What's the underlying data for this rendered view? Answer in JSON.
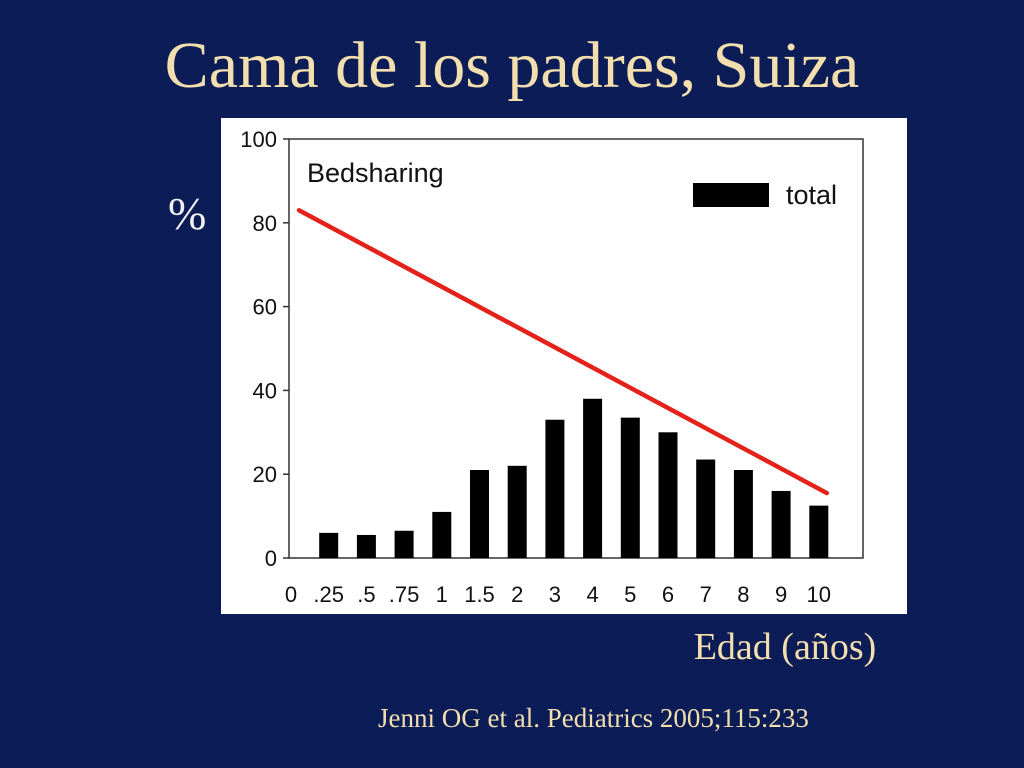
{
  "slide": {
    "title": "Cama de los padres, Suiza",
    "y_unit_label": "%",
    "x_axis_caption": "Edad (años)",
    "citation": "Jenni OG et al. Pediatrics 2005;115:233"
  },
  "chart_data": {
    "type": "bar",
    "title": "Bedsharing",
    "xlabel": "Edad (años)",
    "ylabel": "%",
    "ylim": [
      0,
      100
    ],
    "yticks": [
      0,
      20,
      40,
      60,
      80,
      100
    ],
    "x_tick_labels": [
      "0",
      ".25",
      ".5",
      ".75",
      "1",
      "1.5",
      "2",
      "3",
      "4",
      "5",
      "6",
      "7",
      "8",
      "9",
      "10"
    ],
    "categories": [
      ".25",
      ".5",
      ".75",
      "1",
      "1.5",
      "2",
      "3",
      "4",
      "5",
      "6",
      "7",
      "8",
      "9",
      "10"
    ],
    "series": [
      {
        "name": "total",
        "values": [
          6,
          5.5,
          6.5,
          11,
          21,
          22,
          33,
          38,
          33.5,
          30,
          23.5,
          21,
          16,
          12.5
        ]
      }
    ],
    "legend_position": "top-right",
    "grid": false,
    "trend_line": {
      "color": "#e3231b",
      "start": {
        "x": "0",
        "y": 83
      },
      "end": {
        "x": "10",
        "y": 15.5
      }
    },
    "bar_color": "#000000"
  }
}
